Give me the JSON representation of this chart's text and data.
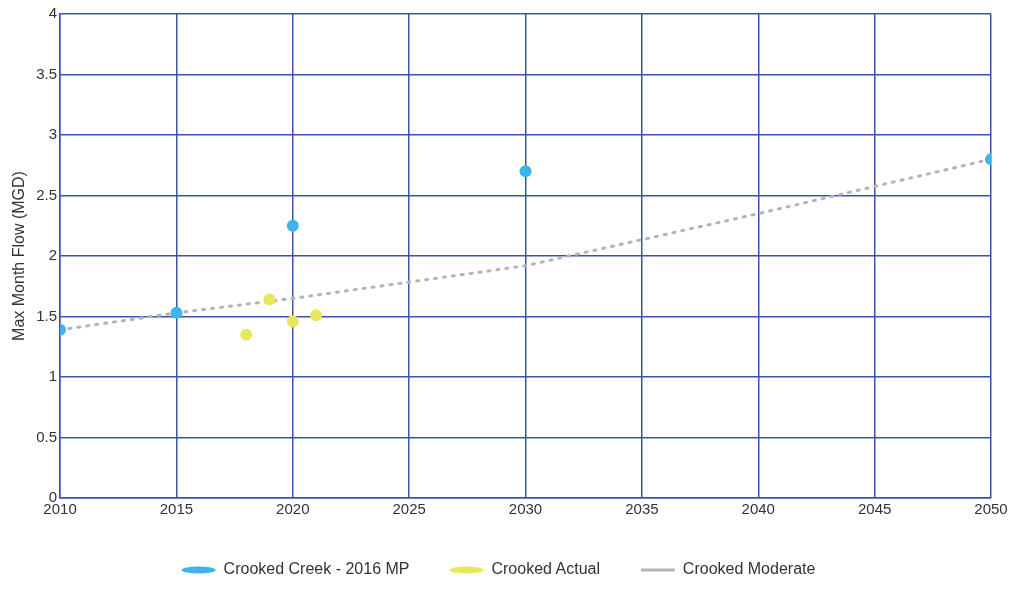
{
  "chart_data": {
    "type": "scatter",
    "ylabel": "Max Month Flow (MGD)",
    "xlim": [
      2010,
      2050
    ],
    "xticks": [
      2010,
      2015,
      2020,
      2025,
      2030,
      2035,
      2040,
      2045,
      2050
    ],
    "ylim": [
      0,
      4
    ],
    "yticks": [
      0,
      0.5,
      1,
      1.5,
      2,
      2.5,
      3,
      3.5,
      4
    ],
    "grid": true,
    "legend": "bottom",
    "series": [
      {
        "name": "Crooked Creek - 2016 MP",
        "type": "scatter",
        "marker": "circle",
        "color": "#3db5eb",
        "x": [
          2010,
          2015,
          2020,
          2030,
          2050
        ],
        "values": [
          1.39,
          1.53,
          2.25,
          2.7,
          2.8
        ]
      },
      {
        "name": "Crooked Actual",
        "type": "scatter",
        "marker": "circle",
        "color": "#e8e85a",
        "x": [
          2018,
          2019,
          2020,
          2021
        ],
        "values": [
          1.35,
          1.64,
          1.46,
          1.51
        ]
      },
      {
        "name": "Crooked Moderate",
        "type": "line",
        "marker": "none",
        "line_style": "dotted",
        "color": "#b4b4b4",
        "x": [
          2010,
          2015,
          2020,
          2030,
          2040,
          2050
        ],
        "values": [
          1.39,
          1.53,
          1.65,
          1.92,
          2.35,
          2.8
        ]
      }
    ]
  }
}
